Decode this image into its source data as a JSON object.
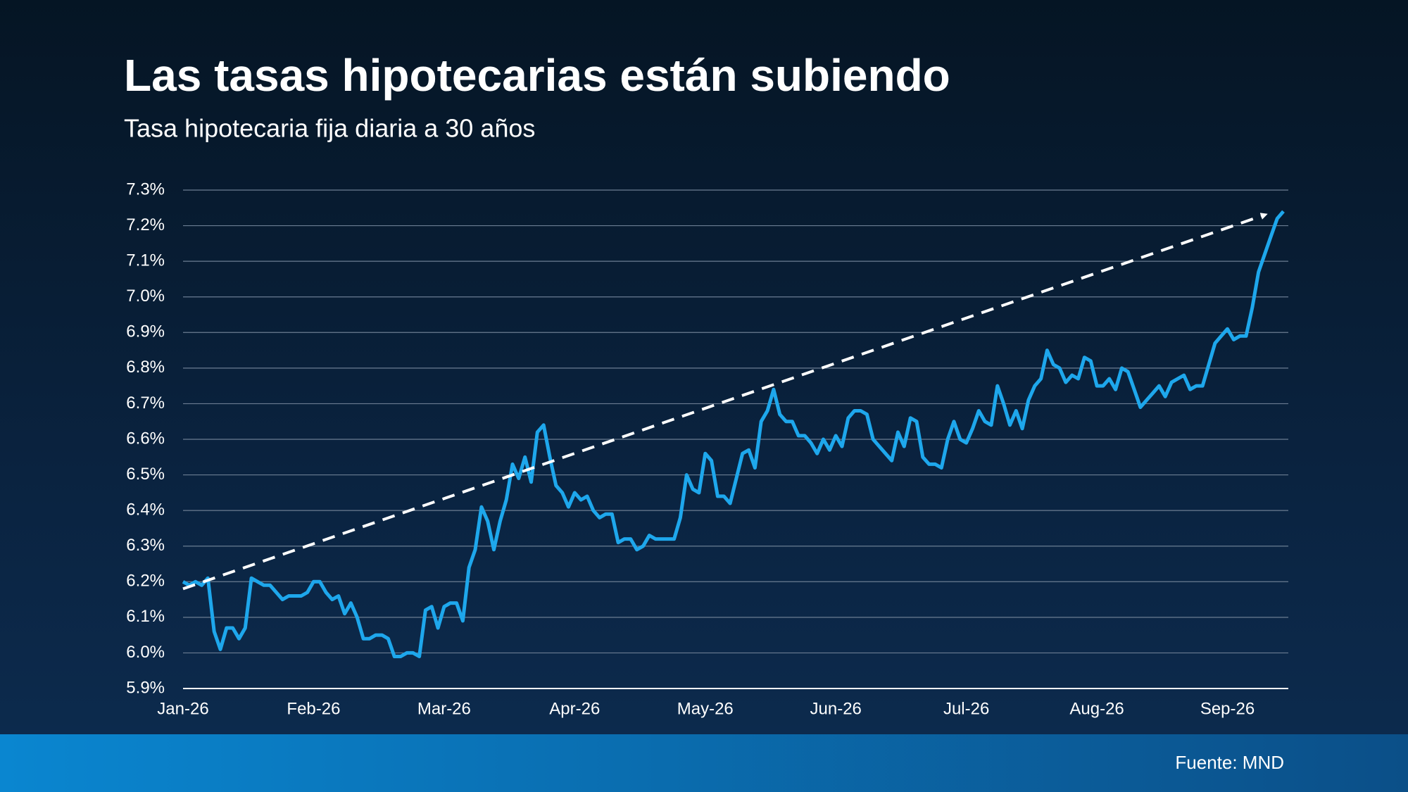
{
  "chart_data": {
    "type": "line",
    "title": "Las tasas hipotecarias están subiendo",
    "subtitle": "Tasa hipotecaria fija diaria a 30 años",
    "source": "Fuente: MND",
    "categories": [
      "Jan-26",
      null,
      null,
      null,
      null,
      null,
      null,
      null,
      null,
      null,
      null,
      null,
      null,
      null,
      null,
      null,
      null,
      null,
      null,
      null,
      null,
      "Feb-26",
      null,
      null,
      null,
      null,
      null,
      null,
      null,
      null,
      null,
      null,
      null,
      null,
      null,
      null,
      null,
      null,
      null,
      null,
      null,
      null,
      "Mar-26",
      null,
      null,
      null,
      null,
      null,
      null,
      null,
      null,
      null,
      null,
      null,
      null,
      null,
      null,
      null,
      null,
      null,
      null,
      null,
      null,
      "Apr-26",
      null,
      null,
      null,
      null,
      null,
      null,
      null,
      null,
      null,
      null,
      null,
      null,
      null,
      null,
      null,
      null,
      null,
      null,
      null,
      null,
      "May-26",
      null,
      null,
      null,
      null,
      null,
      null,
      null,
      null,
      null,
      null,
      null,
      null,
      null,
      null,
      null,
      null,
      null,
      null,
      null,
      null,
      "Jun-26",
      null,
      null,
      null,
      null,
      null,
      null,
      null,
      null,
      null,
      null,
      null,
      null,
      null,
      null,
      null,
      null,
      null,
      null,
      null,
      null,
      "Jul-26",
      null,
      null,
      null,
      null,
      null,
      null,
      null,
      null,
      null,
      null,
      null,
      null,
      null,
      null,
      null,
      null,
      null,
      null,
      null,
      null,
      "Aug-26",
      null,
      null,
      null,
      null,
      null,
      null,
      null,
      null,
      null,
      null,
      null,
      null,
      null,
      null,
      null,
      null,
      null,
      null,
      null,
      null,
      "Sep-26",
      null,
      null,
      null,
      null,
      null,
      null,
      null,
      null,
      null
    ],
    "series": [
      {
        "color": "#1ea7ec",
        "values": [
          6.2,
          6.19,
          6.2,
          6.19,
          6.21,
          6.06,
          6.01,
          6.07,
          6.07,
          6.04,
          6.07,
          6.21,
          6.2,
          6.19,
          6.19,
          6.17,
          6.15,
          6.16,
          6.16,
          6.16,
          6.17,
          6.2,
          6.2,
          6.17,
          6.15,
          6.16,
          6.11,
          6.14,
          6.1,
          6.04,
          6.04,
          6.05,
          6.05,
          6.04,
          5.99,
          5.99,
          6.0,
          6.0,
          5.99,
          6.12,
          6.13,
          6.07,
          6.13,
          6.14,
          6.14,
          6.09,
          6.24,
          6.29,
          6.41,
          6.37,
          6.29,
          6.37,
          6.43,
          6.53,
          6.49,
          6.55,
          6.48,
          6.62,
          6.64,
          6.55,
          6.47,
          6.45,
          6.41,
          6.45,
          6.43,
          6.44,
          6.4,
          6.38,
          6.39,
          6.39,
          6.31,
          6.32,
          6.32,
          6.29,
          6.3,
          6.33,
          6.32,
          6.32,
          6.32,
          6.32,
          6.38,
          6.5,
          6.46,
          6.45,
          6.56,
          6.54,
          6.44,
          6.44,
          6.42,
          6.49,
          6.56,
          6.57,
          6.52,
          6.65,
          6.68,
          6.74,
          6.67,
          6.65,
          6.65,
          6.61,
          6.61,
          6.59,
          6.56,
          6.6,
          6.57,
          6.61,
          6.58,
          6.66,
          6.68,
          6.68,
          6.67,
          6.6,
          6.58,
          6.56,
          6.54,
          6.62,
          6.58,
          6.66,
          6.65,
          6.55,
          6.53,
          6.53,
          6.52,
          6.6,
          6.65,
          6.6,
          6.59,
          6.63,
          6.68,
          6.65,
          6.64,
          6.75,
          6.7,
          6.64,
          6.68,
          6.63,
          6.71,
          6.75,
          6.77,
          6.85,
          6.81,
          6.8,
          6.76,
          6.78,
          6.77,
          6.83,
          6.82,
          6.75,
          6.75,
          6.77,
          6.74,
          6.8,
          6.79,
          6.74,
          6.69,
          6.71,
          6.73,
          6.75,
          6.72,
          6.76,
          6.77,
          6.78,
          6.74,
          6.75,
          6.75,
          6.81,
          6.87,
          6.89,
          6.91,
          6.88,
          6.89,
          6.89,
          6.97,
          7.07,
          7.12,
          7.17,
          7.22,
          7.24
        ]
      }
    ],
    "trend_line": [
      6.18,
      7.23
    ],
    "ylim": [
      5.9,
      7.3
    ],
    "yticks": [
      {
        "value": 5.9,
        "label": "5.9%"
      },
      {
        "value": 6.0,
        "label": "6.0%"
      },
      {
        "value": 6.1,
        "label": "6.1%"
      },
      {
        "value": 6.2,
        "label": "6.2%"
      },
      {
        "value": 6.3,
        "label": "6.3%"
      },
      {
        "value": 6.4,
        "label": "6.4%"
      },
      {
        "value": 6.5,
        "label": "6.5%"
      },
      {
        "value": 6.6,
        "label": "6.6%"
      },
      {
        "value": 6.7,
        "label": "6.7%"
      },
      {
        "value": 6.8,
        "label": "6.8%"
      },
      {
        "value": 6.9,
        "label": "6.9%"
      },
      {
        "value": 7.0,
        "label": "7.0%"
      },
      {
        "value": 7.1,
        "label": "7.1%"
      },
      {
        "value": 7.2,
        "label": "7.2%"
      },
      {
        "value": 7.3,
        "label": "7.3%"
      }
    ],
    "grid": true
  }
}
